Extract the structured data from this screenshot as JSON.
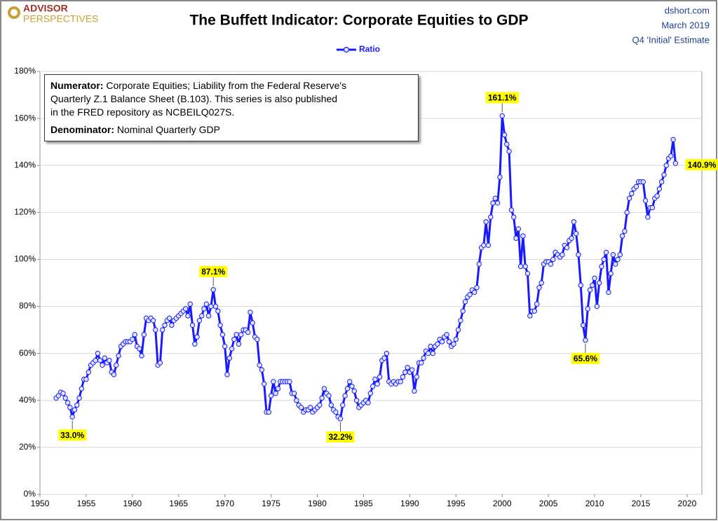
{
  "chart_data": {
    "type": "line",
    "title": "The Buffett Indicator: Corporate Equities to GDP",
    "logo": {
      "top": "ADVISOR",
      "bottom": "PERSPECTIVES"
    },
    "source": [
      "dshort.com",
      "March 2019",
      "Q4 'Initial' Estimate"
    ],
    "note": {
      "numerator_label": "Numerator:",
      "numerator_lines": [
        "Corporate Equities; Liability from the Federal Reserve's",
        "Quarterly Z.1 Balance Sheet (B.103). This series is also published",
        "in the FRED repository  as NCBEILQ027S."
      ],
      "denominator_label": "Denominator:",
      "denominator_text": "Nominal Quarterly GDP"
    },
    "xlim": [
      1950,
      2021.6
    ],
    "xticks": [
      1950,
      1955,
      1960,
      1965,
      1970,
      1975,
      1980,
      1985,
      1990,
      1995,
      2000,
      2005,
      2010,
      2015,
      2020
    ],
    "ylim": [
      0,
      180
    ],
    "yticks": [
      {
        "value": 0,
        "label": "0%"
      },
      {
        "value": 20,
        "label": "20%"
      },
      {
        "value": 40,
        "label": "40%"
      },
      {
        "value": 60,
        "label": "60%"
      },
      {
        "value": 80,
        "label": "80%"
      },
      {
        "value": 100,
        "label": "100%"
      },
      {
        "value": 120,
        "label": "120%"
      },
      {
        "value": 140,
        "label": "140%"
      },
      {
        "value": 160,
        "label": "160%"
      },
      {
        "value": 180,
        "label": "180%"
      }
    ],
    "legend": "top",
    "x": [
      1951.75,
      1952,
      1952.25,
      1952.5,
      1952.75,
      1953,
      1953.25,
      1953.5,
      1953.75,
      1954,
      1954.25,
      1954.5,
      1954.75,
      1955,
      1955.25,
      1955.5,
      1955.75,
      1956,
      1956.25,
      1956.5,
      1956.75,
      1957,
      1957.25,
      1957.5,
      1957.75,
      1958,
      1958.25,
      1958.5,
      1958.75,
      1959,
      1959.25,
      1959.5,
      1959.75,
      1960,
      1960.25,
      1960.5,
      1960.75,
      1961,
      1961.25,
      1961.5,
      1961.75,
      1962,
      1962.25,
      1962.5,
      1962.75,
      1963,
      1963.25,
      1963.5,
      1963.75,
      1964,
      1964.25,
      1964.5,
      1964.75,
      1965,
      1965.25,
      1965.5,
      1965.75,
      1966,
      1966.25,
      1966.5,
      1966.75,
      1967,
      1967.25,
      1967.5,
      1967.75,
      1968,
      1968.25,
      1968.5,
      1968.75,
      1969,
      1969.25,
      1969.5,
      1969.75,
      1970,
      1970.25,
      1970.5,
      1970.75,
      1971,
      1971.25,
      1971.5,
      1971.75,
      1972,
      1972.25,
      1972.5,
      1972.75,
      1973,
      1973.25,
      1973.5,
      1973.75,
      1974,
      1974.25,
      1974.5,
      1974.75,
      1975,
      1975.25,
      1975.5,
      1975.75,
      1976,
      1976.25,
      1976.5,
      1976.75,
      1977,
      1977.25,
      1977.5,
      1977.75,
      1978,
      1978.25,
      1978.5,
      1978.75,
      1979,
      1979.25,
      1979.5,
      1979.75,
      1980,
      1980.25,
      1980.5,
      1980.75,
      1981,
      1981.25,
      1981.5,
      1981.75,
      1982,
      1982.25,
      1982.5,
      1982.75,
      1983,
      1983.25,
      1983.5,
      1983.75,
      1984,
      1984.25,
      1984.5,
      1984.75,
      1985,
      1985.25,
      1985.5,
      1985.75,
      1986,
      1986.25,
      1986.5,
      1986.75,
      1987,
      1987.25,
      1987.5,
      1987.75,
      1988,
      1988.25,
      1988.5,
      1988.75,
      1989,
      1989.25,
      1989.5,
      1989.75,
      1990,
      1990.25,
      1990.5,
      1990.75,
      1991,
      1991.25,
      1991.5,
      1991.75,
      1992,
      1992.25,
      1992.5,
      1992.75,
      1993,
      1993.25,
      1993.5,
      1993.75,
      1994,
      1994.25,
      1994.5,
      1994.75,
      1995,
      1995.25,
      1995.5,
      1995.75,
      1996,
      1996.25,
      1996.5,
      1996.75,
      1997,
      1997.25,
      1997.5,
      1997.75,
      1998,
      1998.25,
      1998.5,
      1998.75,
      1999,
      1999.25,
      1999.5,
      1999.75,
      2000,
      2000.25,
      2000.5,
      2000.75,
      2001,
      2001.25,
      2001.5,
      2001.75,
      2002,
      2002.25,
      2002.5,
      2002.75,
      2003,
      2003.25,
      2003.5,
      2003.75,
      2004,
      2004.25,
      2004.5,
      2004.75,
      2005,
      2005.25,
      2005.5,
      2005.75,
      2006,
      2006.25,
      2006.5,
      2006.75,
      2007,
      2007.25,
      2007.5,
      2007.75,
      2008,
      2008.25,
      2008.5,
      2008.75,
      2009,
      2009.25,
      2009.5,
      2009.75,
      2010,
      2010.25,
      2010.5,
      2010.75,
      2011,
      2011.25,
      2011.5,
      2011.75,
      2012,
      2012.25,
      2012.5,
      2012.75,
      2013,
      2013.25,
      2013.5,
      2013.75,
      2014,
      2014.25,
      2014.5,
      2014.75,
      2015,
      2015.25,
      2015.5,
      2015.75,
      2016,
      2016.25,
      2016.5,
      2016.75,
      2017,
      2017.25,
      2017.5,
      2017.75,
      2018,
      2018.25,
      2018.5,
      2018.75
    ],
    "series": [
      {
        "name": "Ratio",
        "color": "#1a1aff",
        "values": [
          41,
          42,
          43.5,
          43,
          41,
          39,
          37,
          33.0,
          36,
          38,
          41,
          45,
          49,
          49,
          52,
          55,
          56,
          57,
          60,
          57,
          55,
          58,
          56,
          57,
          52,
          51,
          55,
          59,
          63,
          64,
          65,
          65,
          65,
          66,
          68,
          63,
          62,
          59,
          68,
          75,
          74,
          75,
          74,
          70,
          55,
          56,
          70,
          72,
          74,
          75,
          72,
          74,
          75,
          76,
          77,
          78,
          79,
          76,
          81,
          72,
          64,
          67,
          74,
          76,
          79,
          81,
          76,
          80,
          87.1,
          80,
          78,
          72,
          68,
          63,
          51,
          58,
          62,
          66,
          68,
          64,
          68,
          70,
          70,
          69,
          77.5,
          73,
          67,
          66,
          55,
          53,
          47,
          35,
          35,
          42,
          48,
          43,
          45,
          48,
          48,
          48,
          48,
          48,
          43,
          43,
          40,
          38,
          37,
          35,
          36,
          36,
          37,
          35,
          36,
          37,
          38,
          41,
          45,
          43,
          42,
          38,
          36,
          35,
          33,
          32.2,
          38,
          42,
          45,
          48,
          46,
          44,
          40,
          37,
          38,
          39,
          40,
          39,
          43,
          46,
          49,
          47,
          50,
          57,
          58,
          60,
          48,
          47,
          48,
          47,
          48,
          48,
          50,
          52,
          54,
          52,
          53,
          44,
          50,
          56,
          56,
          58,
          61,
          60,
          63,
          60,
          63,
          64,
          66,
          65,
          67,
          68,
          65,
          63,
          64,
          66,
          70,
          74,
          78,
          82,
          84,
          85,
          87,
          86,
          88,
          98,
          105,
          106,
          116,
          106,
          118,
          124,
          126,
          124,
          135,
          161.1,
          153,
          149,
          146,
          121,
          118,
          109,
          113,
          97,
          110,
          97,
          94,
          76,
          78,
          78,
          81,
          88,
          90,
          98,
          99,
          99,
          98,
          100,
          103,
          102,
          101,
          102,
          106,
          105,
          108,
          109,
          116,
          111,
          102,
          89,
          72,
          65.6,
          79,
          87,
          89,
          92,
          80,
          90,
          97,
          100,
          103,
          86,
          94,
          102,
          98,
          100,
          102,
          110,
          112,
          120,
          126,
          128,
          130,
          131,
          133,
          133,
          133,
          125,
          118,
          122,
          122,
          126,
          127,
          130,
          133,
          136,
          140,
          143,
          144,
          151,
          140.9
        ],
        "value_labels": [
          null,
          null,
          null,
          null,
          null,
          null,
          null,
          "33.0%",
          null,
          null,
          null,
          null,
          null,
          null,
          null,
          null,
          null,
          null,
          null,
          null,
          null,
          null,
          null,
          null,
          null,
          null,
          null,
          null,
          null,
          null,
          null,
          null,
          null,
          null,
          null,
          null,
          null,
          null,
          null,
          null,
          null,
          null,
          null,
          null,
          null,
          null,
          null,
          null,
          null,
          null,
          null,
          null,
          null,
          null,
          null,
          null,
          null,
          null,
          null,
          null,
          null,
          null,
          null,
          null,
          null,
          null,
          null,
          null,
          "87.1%",
          null,
          null,
          null,
          null,
          null,
          null,
          null,
          null,
          null,
          null,
          null,
          null,
          null,
          null,
          null,
          null,
          null,
          null,
          null,
          null,
          null,
          null,
          null,
          null,
          null,
          null,
          null,
          null,
          null,
          null,
          null,
          null,
          null,
          null,
          null,
          null,
          null,
          null,
          null,
          null,
          null,
          null,
          null,
          null,
          null,
          null,
          null,
          null,
          null,
          null,
          null,
          null,
          null,
          null,
          "32.2%",
          null,
          null,
          null,
          null,
          null,
          null,
          null,
          null,
          null,
          null,
          null,
          null,
          null,
          null,
          null,
          null,
          null,
          null,
          null,
          null,
          null,
          null,
          null,
          null,
          null,
          null,
          null,
          null,
          null,
          null,
          null,
          null,
          null,
          null,
          null,
          null,
          null,
          null,
          null,
          null,
          null,
          null,
          null,
          null,
          null,
          null,
          null,
          null,
          null,
          null,
          null,
          null,
          null,
          null,
          null,
          null,
          null,
          null,
          null,
          null,
          null,
          null,
          null,
          null,
          null,
          null,
          null,
          null,
          null,
          "161.1%",
          null,
          null,
          null,
          null,
          null,
          null,
          null,
          null,
          null,
          null,
          null,
          null,
          null,
          null,
          null,
          null,
          null,
          null,
          null,
          null,
          null,
          null,
          null,
          null,
          null,
          null,
          null,
          null,
          null,
          null,
          null,
          null,
          null,
          null,
          null,
          "65.6%",
          null,
          null,
          null,
          null,
          null,
          null,
          null,
          null,
          null,
          null,
          null,
          null,
          null,
          null,
          null,
          null,
          null,
          null,
          null,
          null,
          null,
          null,
          null,
          null,
          null,
          null,
          null,
          null,
          null,
          null,
          null,
          null,
          null,
          null,
          null,
          null,
          null,
          null,
          "140.9%"
        ]
      }
    ]
  }
}
